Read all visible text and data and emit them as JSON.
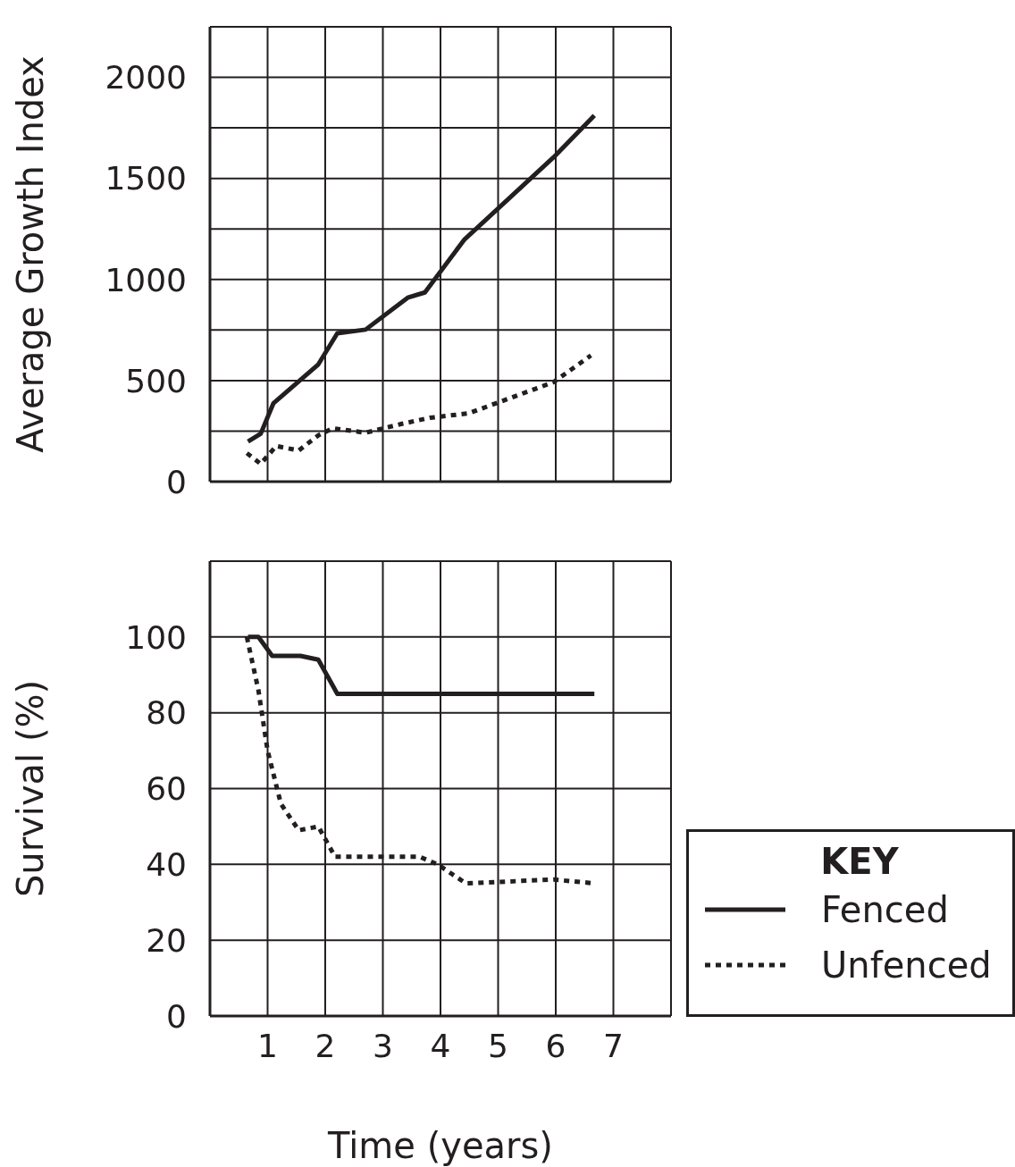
{
  "chart_data": [
    {
      "type": "line",
      "ylabel": "Average Growth Index",
      "xlim": [
        0,
        8
      ],
      "xticks": [
        1,
        2,
        3,
        4,
        5,
        6,
        7
      ],
      "ylim": [
        0,
        2250
      ],
      "yticks": [
        0,
        {
          "value": 250,
          "label": null
        },
        500,
        {
          "value": 750,
          "label": null
        },
        1000,
        {
          "value": 1250,
          "label": null
        },
        1500,
        {
          "value": 1750,
          "label": null
        },
        2000
      ],
      "tick_labels": "y",
      "grid": true,
      "series": [
        {
          "color": "#231f20",
          "line_style": "solid",
          "x": [
            0.66,
            0.88,
            1.1,
            1.88,
            2.21,
            2.7,
            3.43,
            3.73,
            4.41,
            5.96,
            6.67
          ],
          "values": [
            198,
            237,
            387,
            580,
            734,
            752,
            910,
            936,
            1196,
            1604,
            1811
          ]
        },
        {
          "color": "#231f20",
          "line_style": "dotted",
          "x": [
            0.64,
            0.88,
            1.15,
            1.54,
            1.88,
            2.13,
            2.7,
            3.33,
            3.82,
            4.49,
            5.96,
            6.61
          ],
          "values": [
            141,
            88,
            176,
            154,
            229,
            264,
            242,
            286,
            316,
            338,
            492,
            624
          ]
        }
      ]
    },
    {
      "type": "line",
      "xlabel": "Time (years)",
      "ylabel": "Survival (%)",
      "xlim": [
        0,
        8
      ],
      "xticks": [
        1,
        2,
        3,
        4,
        5,
        6,
        7
      ],
      "ylim": [
        0,
        120
      ],
      "yticks": [
        0,
        20,
        40,
        60,
        80,
        100
      ],
      "grid": true,
      "legend": "bottom right",
      "legend_title": "KEY",
      "series": [
        {
          "name": "Fenced",
          "color": "#231f20",
          "line_style": "solid",
          "x": [
            0.66,
            0.84,
            1.08,
            1.57,
            1.88,
            2.21,
            6.67
          ],
          "values": [
            100,
            100,
            95,
            95,
            94,
            85,
            85
          ]
        },
        {
          "name": "Unfenced",
          "color": "#231f20",
          "line_style": "dotted",
          "x": [
            0.64,
            0.84,
            1.0,
            1.23,
            1.54,
            1.88,
            2.17,
            3.64,
            3.95,
            4.44,
            5.96,
            6.67
          ],
          "values": [
            100,
            86,
            70,
            56,
            49,
            50,
            42,
            42,
            40,
            35,
            36,
            35
          ]
        }
      ]
    }
  ]
}
